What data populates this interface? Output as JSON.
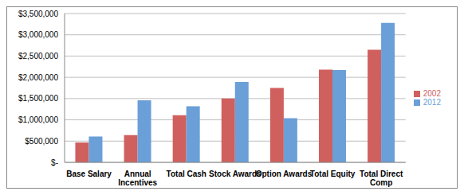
{
  "chart_data": {
    "type": "bar",
    "categories": [
      "Base Salary",
      "Annual Incentives",
      "Total Cash",
      "Stock Awards",
      "Option Awards",
      "Total Equity",
      "Total Direct Comp"
    ],
    "series": [
      {
        "name": "2002",
        "color": "#d0605e",
        "values": [
          470000,
          640000,
          1110000,
          1500000,
          1750000,
          2180000,
          2650000
        ]
      },
      {
        "name": "2012",
        "color": "#6a9fd8",
        "values": [
          610000,
          1460000,
          1320000,
          1890000,
          1040000,
          2170000,
          3280000
        ]
      }
    ],
    "ylim": [
      0,
      3500000
    ],
    "yticks": [
      {
        "value": 0,
        "label": "$-"
      },
      {
        "value": 500000,
        "label": "$500,000"
      },
      {
        "value": 1000000,
        "label": "$1,000,000"
      },
      {
        "value": 1500000,
        "label": "$1,500,000"
      },
      {
        "value": 2000000,
        "label": "$2,000,000"
      },
      {
        "value": 2500000,
        "label": "$2,500,000"
      },
      {
        "value": 3000000,
        "label": "$3,000,000"
      },
      {
        "value": 3500000,
        "label": "$3,500,000"
      }
    ],
    "grid": true,
    "legend": "right"
  }
}
